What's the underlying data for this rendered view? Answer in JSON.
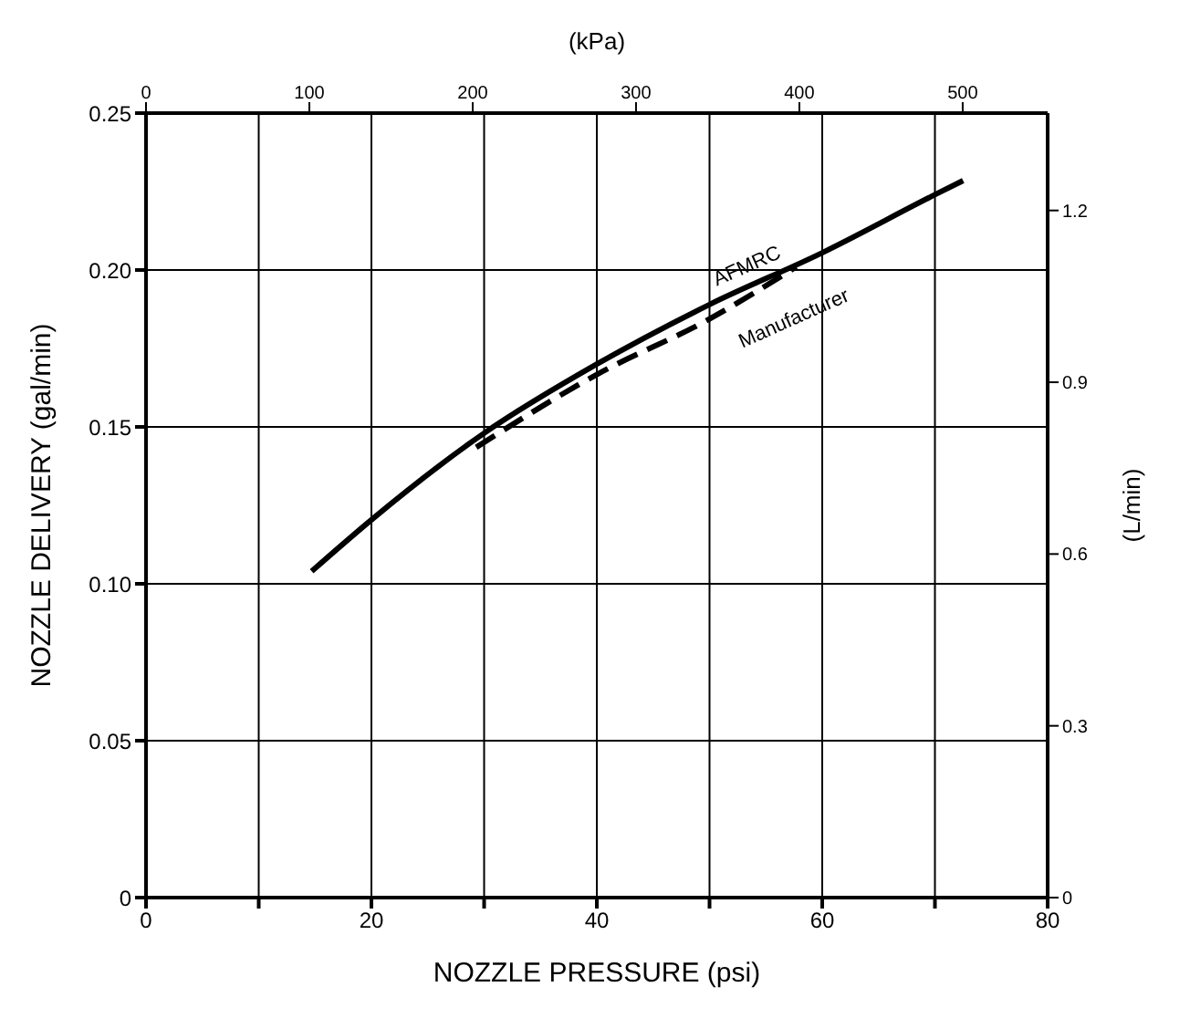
{
  "chart_data": {
    "type": "line",
    "xlabel": "NOZZLE PRESSURE (psi)",
    "ylabel": "NOZZLE DELIVERY (gal/min)",
    "x2label": "(kPa)",
    "y2label": "(L/min)",
    "xlim": [
      0,
      80
    ],
    "xticks": [
      0,
      {
        "value": 10,
        "label": null
      },
      20,
      {
        "value": 30,
        "label": null
      },
      40,
      {
        "value": 50,
        "label": null
      },
      60,
      {
        "value": 70,
        "label": null
      },
      80
    ],
    "ylim": [
      0,
      0.25
    ],
    "yticks": [
      0,
      0.05,
      {
        "value": 0.1,
        "label": "0.10"
      },
      0.15,
      {
        "value": 0.2,
        "label": "0.20"
      },
      0.25
    ],
    "x2lim": [
      0,
      552
    ],
    "x2ticks": [
      0,
      100,
      200,
      300,
      400,
      500
    ],
    "y2lim": [
      0,
      1.37
    ],
    "y2ticks": [
      0,
      0.3,
      0.6,
      0.9,
      1.2
    ],
    "grid": true,
    "legend": false,
    "marker": "none",
    "series": [
      {
        "name": "AFMRC",
        "color": "#000000",
        "line_style": "solid",
        "x": [
          14.7,
          20,
          30,
          40,
          50,
          60,
          70,
          72.5
        ],
        "values": [
          0.104,
          0.1204,
          0.148,
          0.17,
          0.189,
          0.2055,
          0.224,
          0.2285
        ]
      },
      {
        "name": "Manufacturer",
        "color": "#000000",
        "line_style": "dashed",
        "x": [
          29.3,
          40,
          50,
          57.7
        ],
        "values": [
          0.1435,
          0.1667,
          0.1844,
          0.201
        ]
      }
    ]
  }
}
